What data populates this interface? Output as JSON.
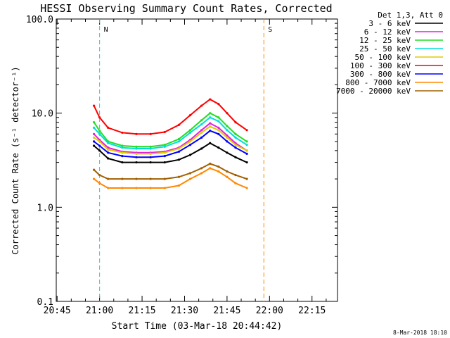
{
  "chart_data": {
    "type": "line",
    "title": "HESSI Observing Summary Count Rates, Corrected",
    "xlabel": "Start Time (03-Mar-18 20:44:42)",
    "ylabel": "Corrected Count Rate (s⁻¹ detector⁻¹)",
    "y_scale": "log",
    "ylim": [
      0.1,
      100.0
    ],
    "xlim": [
      "20:44:42",
      "22:24:00"
    ],
    "x_ticks": [
      "20:45",
      "21:00",
      "21:15",
      "21:30",
      "21:45",
      "22:00",
      "22:15"
    ],
    "y_ticks": [
      "0.1",
      "1.0",
      "10.0",
      "100.0"
    ],
    "legend_title": "Det 1,3, Att 0",
    "legend_position": "right",
    "timestamp": "8-Mar-2018 18:10",
    "series": [
      {
        "name": "3 - 6 keV",
        "color": "#000000",
        "x": [
          "20:58",
          "21:00",
          "21:03",
          "21:08",
          "21:13",
          "21:18",
          "21:23",
          "21:28",
          "21:32",
          "21:36",
          "21:39",
          "21:42",
          "21:45",
          "21:48",
          "21:52"
        ],
        "values": [
          4.5,
          4.0,
          3.3,
          3.0,
          3.0,
          3.0,
          3.0,
          3.2,
          3.6,
          4.2,
          4.8,
          4.3,
          3.8,
          3.4,
          3.0
        ]
      },
      {
        "name": "6 - 12 keV",
        "color": "#e020e0",
        "x": [
          "20:58",
          "21:00",
          "21:03",
          "21:08",
          "21:13",
          "21:18",
          "21:23",
          "21:28",
          "21:32",
          "21:36",
          "21:39",
          "21:42",
          "21:45",
          "21:48",
          "21:52"
        ],
        "values": [
          6.0,
          5.2,
          4.3,
          3.9,
          3.8,
          3.8,
          3.9,
          4.3,
          5.2,
          6.6,
          7.8,
          7.0,
          5.8,
          4.8,
          4.0
        ]
      },
      {
        "name": "12 - 25 keV",
        "color": "#22dd22",
        "x": [
          "20:58",
          "21:00",
          "21:03",
          "21:08",
          "21:13",
          "21:18",
          "21:23",
          "21:28",
          "21:32",
          "21:36",
          "21:39",
          "21:42",
          "21:45",
          "21:48",
          "21:52"
        ],
        "values": [
          8.0,
          6.5,
          5.0,
          4.5,
          4.4,
          4.4,
          4.6,
          5.3,
          6.6,
          8.4,
          10.0,
          9.0,
          7.3,
          6.0,
          5.0
        ]
      },
      {
        "name": "25 - 50 keV",
        "color": "#00dddd",
        "x": [
          "20:58",
          "21:00",
          "21:03",
          "21:08",
          "21:13",
          "21:18",
          "21:23",
          "21:28",
          "21:32",
          "21:36",
          "21:39",
          "21:42",
          "21:45",
          "21:48",
          "21:52"
        ],
        "values": [
          7.0,
          6.0,
          4.8,
          4.3,
          4.2,
          4.2,
          4.4,
          5.0,
          6.2,
          7.6,
          9.0,
          8.2,
          6.6,
          5.5,
          4.6
        ]
      },
      {
        "name": "50 - 100 keV",
        "color": "#ddcc00",
        "x": [
          "20:58",
          "21:00",
          "21:03",
          "21:08",
          "21:13",
          "21:18",
          "21:23",
          "21:28",
          "21:32",
          "21:36",
          "21:39",
          "21:42",
          "21:45",
          "21:48",
          "21:52"
        ],
        "values": [
          5.5,
          5.0,
          4.1,
          3.8,
          3.7,
          3.7,
          3.8,
          4.2,
          5.0,
          6.2,
          7.2,
          6.6,
          5.5,
          4.6,
          4.0
        ]
      },
      {
        "name": "100 - 300 keV",
        "color": "#ff0000",
        "x": [
          "20:58",
          "21:00",
          "21:03",
          "21:08",
          "21:13",
          "21:18",
          "21:23",
          "21:28",
          "21:32",
          "21:36",
          "21:39",
          "21:42",
          "21:45",
          "21:48",
          "21:52"
        ],
        "values": [
          12.0,
          9.0,
          7.0,
          6.2,
          6.0,
          6.0,
          6.3,
          7.5,
          9.5,
          12.0,
          14.0,
          12.5,
          10.0,
          8.0,
          6.6
        ]
      },
      {
        "name": "300 - 800 keV",
        "color": "#0000ff",
        "x": [
          "20:58",
          "21:00",
          "21:03",
          "21:08",
          "21:13",
          "21:18",
          "21:23",
          "21:28",
          "21:32",
          "21:36",
          "21:39",
          "21:42",
          "21:45",
          "21:48",
          "21:52"
        ],
        "values": [
          5.0,
          4.5,
          3.8,
          3.5,
          3.4,
          3.4,
          3.5,
          3.9,
          4.6,
          5.5,
          6.5,
          6.0,
          5.0,
          4.3,
          3.7
        ]
      },
      {
        "name": "800 - 7000 keV",
        "color": "#ff8800",
        "x": [
          "20:58",
          "21:00",
          "21:03",
          "21:08",
          "21:13",
          "21:18",
          "21:23",
          "21:28",
          "21:32",
          "21:36",
          "21:39",
          "21:42",
          "21:45",
          "21:48",
          "21:52"
        ],
        "values": [
          2.0,
          1.8,
          1.6,
          1.6,
          1.6,
          1.6,
          1.6,
          1.7,
          2.0,
          2.3,
          2.6,
          2.4,
          2.1,
          1.8,
          1.6
        ]
      },
      {
        "name": "7000 - 20000 keV",
        "color": "#a06000",
        "x": [
          "20:58",
          "21:00",
          "21:03",
          "21:08",
          "21:13",
          "21:18",
          "21:23",
          "21:28",
          "21:32",
          "21:36",
          "21:39",
          "21:42",
          "21:45",
          "21:48",
          "21:52"
        ],
        "values": [
          2.5,
          2.2,
          2.0,
          2.0,
          2.0,
          2.0,
          2.0,
          2.1,
          2.3,
          2.6,
          2.9,
          2.7,
          2.4,
          2.2,
          2.0
        ]
      }
    ],
    "annotations": [
      {
        "label": "N",
        "color": "#00dddd",
        "x": "21:00"
      },
      {
        "label": "S",
        "color": "#ff8800",
        "x": "21:58"
      }
    ]
  }
}
